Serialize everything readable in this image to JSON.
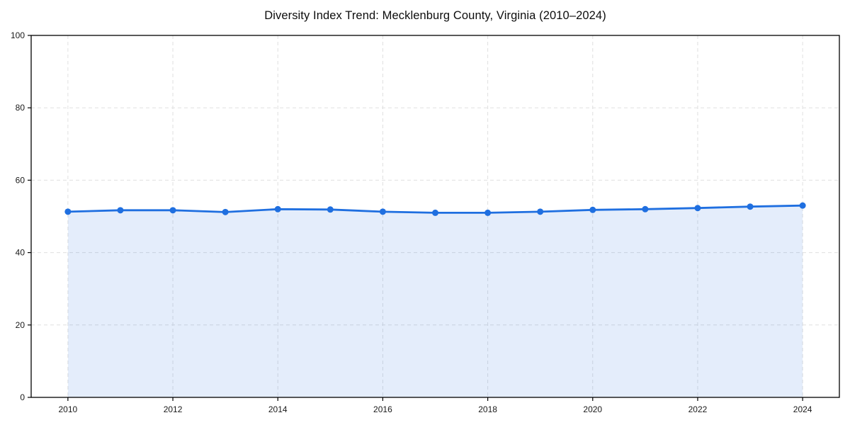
{
  "page": {
    "background_color": "#ffffff"
  },
  "chart_data": {
    "type": "area",
    "title": "Diversity Index Trend: Mecklenburg County, Virginia (2010–2024)",
    "xlabel": "",
    "ylabel": "",
    "x": [
      2010,
      2011,
      2012,
      2013,
      2014,
      2015,
      2016,
      2017,
      2018,
      2019,
      2020,
      2021,
      2022,
      2023,
      2024
    ],
    "series": [
      {
        "name": "Diversity Index",
        "values": [
          51.3,
          51.7,
          51.7,
          51.2,
          52.0,
          51.9,
          51.3,
          51.0,
          51.0,
          51.3,
          51.8,
          52.0,
          52.3,
          52.7,
          53.0
        ]
      }
    ],
    "ylim": [
      0,
      100
    ],
    "yticks": [
      0,
      20,
      40,
      60,
      80,
      100
    ],
    "xticks": [
      2010,
      2012,
      2014,
      2016,
      2018,
      2020,
      2022,
      2024
    ],
    "grid": "dashed, both axes at tick positions",
    "legend": "none",
    "colors": {
      "line": "#1f6fe0",
      "marker": "#1f6fe0",
      "area_fill": "#1f6fe0",
      "area_fill_opacity": "0.12",
      "grid": "#e0e0e0",
      "spine": "#000000",
      "tick_label": "#1a1a1a",
      "title": "#0d0d0d"
    }
  }
}
